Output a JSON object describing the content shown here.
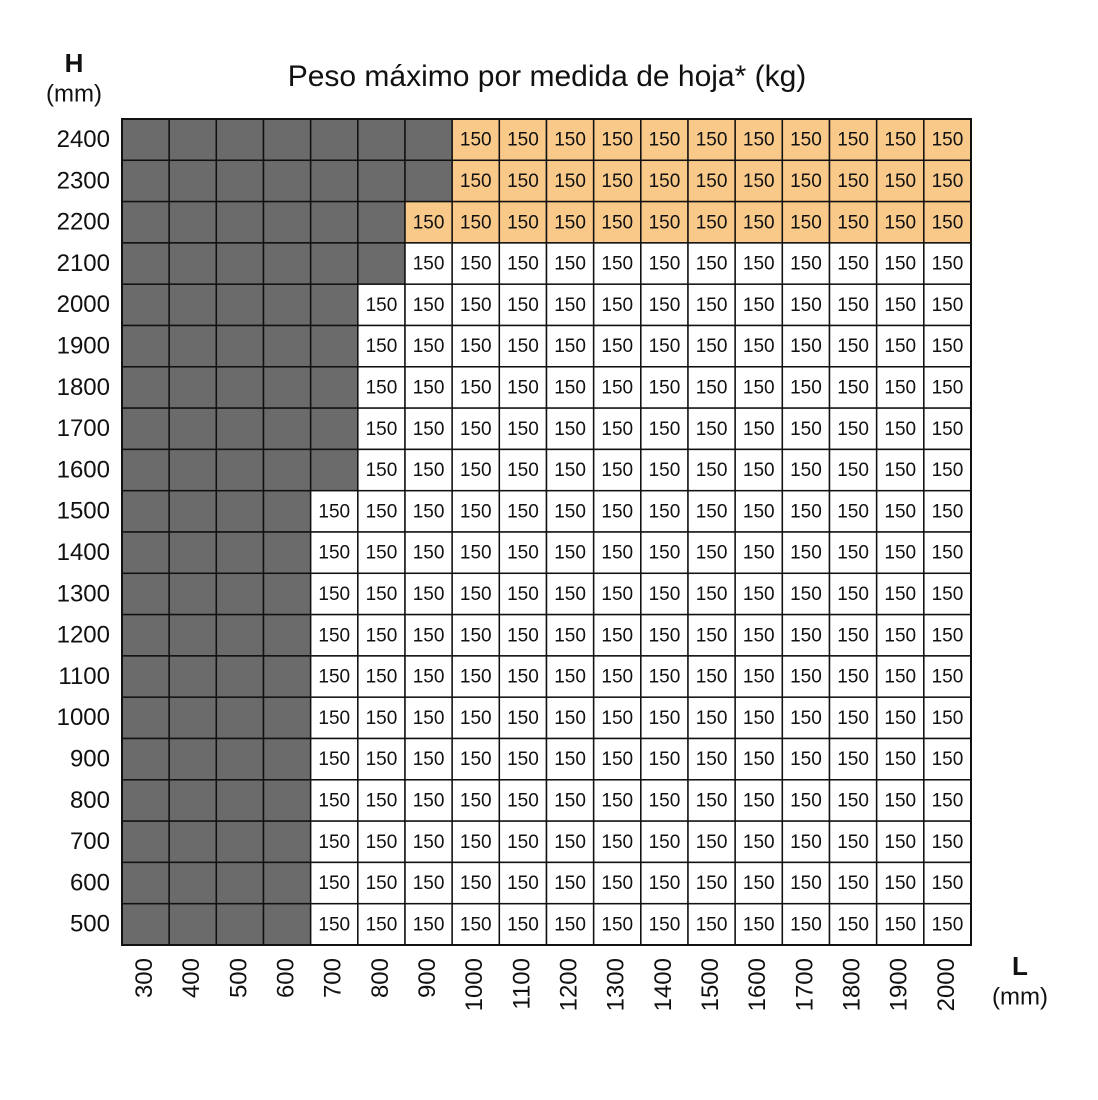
{
  "title": "Peso máximo por medida de hoja* (kg)",
  "y_axis": {
    "label": "H",
    "unit": "(mm)"
  },
  "x_axis": {
    "label": "L",
    "unit": "(mm)"
  },
  "empty_color": "#6b6b6b",
  "columns": [
    "300",
    "400",
    "500",
    "600",
    "700",
    "800",
    "900",
    "1000",
    "1100",
    "1200",
    "1300",
    "1400",
    "1500",
    "1600",
    "1700",
    "1800",
    "1900",
    "2000"
  ],
  "rows": [
    {
      "label": "2400",
      "color": "#f9c98a",
      "values": [
        null,
        null,
        null,
        null,
        null,
        null,
        null,
        150,
        150,
        150,
        150,
        150,
        150,
        150,
        150,
        150,
        150,
        150
      ]
    },
    {
      "label": "2300",
      "color": "#f9c98a",
      "values": [
        null,
        null,
        null,
        null,
        null,
        null,
        null,
        150,
        150,
        150,
        150,
        150,
        150,
        150,
        150,
        150,
        150,
        150
      ]
    },
    {
      "label": "2200",
      "color": "#f9c98a",
      "values": [
        null,
        null,
        null,
        null,
        null,
        null,
        150,
        150,
        150,
        150,
        150,
        150,
        150,
        150,
        150,
        150,
        150,
        150
      ]
    },
    {
      "label": "2100",
      "color": "#ffffff",
      "values": [
        null,
        null,
        null,
        null,
        null,
        null,
        150,
        150,
        150,
        150,
        150,
        150,
        150,
        150,
        150,
        150,
        150,
        150
      ]
    },
    {
      "label": "2000",
      "color": "#ffffff",
      "values": [
        null,
        null,
        null,
        null,
        null,
        150,
        150,
        150,
        150,
        150,
        150,
        150,
        150,
        150,
        150,
        150,
        150,
        150
      ]
    },
    {
      "label": "1900",
      "color": "#ffffff",
      "values": [
        null,
        null,
        null,
        null,
        null,
        150,
        150,
        150,
        150,
        150,
        150,
        150,
        150,
        150,
        150,
        150,
        150,
        150
      ]
    },
    {
      "label": "1800",
      "color": "#ffffff",
      "values": [
        null,
        null,
        null,
        null,
        null,
        150,
        150,
        150,
        150,
        150,
        150,
        150,
        150,
        150,
        150,
        150,
        150,
        150
      ]
    },
    {
      "label": "1700",
      "color": "#ffffff",
      "values": [
        null,
        null,
        null,
        null,
        null,
        150,
        150,
        150,
        150,
        150,
        150,
        150,
        150,
        150,
        150,
        150,
        150,
        150
      ]
    },
    {
      "label": "1600",
      "color": "#ffffff",
      "values": [
        null,
        null,
        null,
        null,
        null,
        150,
        150,
        150,
        150,
        150,
        150,
        150,
        150,
        150,
        150,
        150,
        150,
        150
      ]
    },
    {
      "label": "1500",
      "color": "#ffffff",
      "values": [
        null,
        null,
        null,
        null,
        150,
        150,
        150,
        150,
        150,
        150,
        150,
        150,
        150,
        150,
        150,
        150,
        150,
        150
      ]
    },
    {
      "label": "1400",
      "color": "#ffffff",
      "values": [
        null,
        null,
        null,
        null,
        150,
        150,
        150,
        150,
        150,
        150,
        150,
        150,
        150,
        150,
        150,
        150,
        150,
        150
      ]
    },
    {
      "label": "1300",
      "color": "#ffffff",
      "values": [
        null,
        null,
        null,
        null,
        150,
        150,
        150,
        150,
        150,
        150,
        150,
        150,
        150,
        150,
        150,
        150,
        150,
        150
      ]
    },
    {
      "label": "1200",
      "color": "#ffffff",
      "values": [
        null,
        null,
        null,
        null,
        150,
        150,
        150,
        150,
        150,
        150,
        150,
        150,
        150,
        150,
        150,
        150,
        150,
        150
      ]
    },
    {
      "label": "1100",
      "color": "#ffffff",
      "values": [
        null,
        null,
        null,
        null,
        150,
        150,
        150,
        150,
        150,
        150,
        150,
        150,
        150,
        150,
        150,
        150,
        150,
        150
      ]
    },
    {
      "label": "1000",
      "color": "#ffffff",
      "values": [
        null,
        null,
        null,
        null,
        150,
        150,
        150,
        150,
        150,
        150,
        150,
        150,
        150,
        150,
        150,
        150,
        150,
        150
      ]
    },
    {
      "label": "900",
      "color": "#ffffff",
      "values": [
        null,
        null,
        null,
        null,
        150,
        150,
        150,
        150,
        150,
        150,
        150,
        150,
        150,
        150,
        150,
        150,
        150,
        150
      ]
    },
    {
      "label": "800",
      "color": "#ffffff",
      "values": [
        null,
        null,
        null,
        null,
        150,
        150,
        150,
        150,
        150,
        150,
        150,
        150,
        150,
        150,
        150,
        150,
        150,
        150
      ]
    },
    {
      "label": "700",
      "color": "#ffffff",
      "values": [
        null,
        null,
        null,
        null,
        150,
        150,
        150,
        150,
        150,
        150,
        150,
        150,
        150,
        150,
        150,
        150,
        150,
        150
      ]
    },
    {
      "label": "600",
      "color": "#ffffff",
      "values": [
        null,
        null,
        null,
        null,
        150,
        150,
        150,
        150,
        150,
        150,
        150,
        150,
        150,
        150,
        150,
        150,
        150,
        150
      ]
    },
    {
      "label": "500",
      "color": "#ffffff",
      "values": [
        null,
        null,
        null,
        null,
        150,
        150,
        150,
        150,
        150,
        150,
        150,
        150,
        150,
        150,
        150,
        150,
        150,
        150
      ]
    }
  ]
}
